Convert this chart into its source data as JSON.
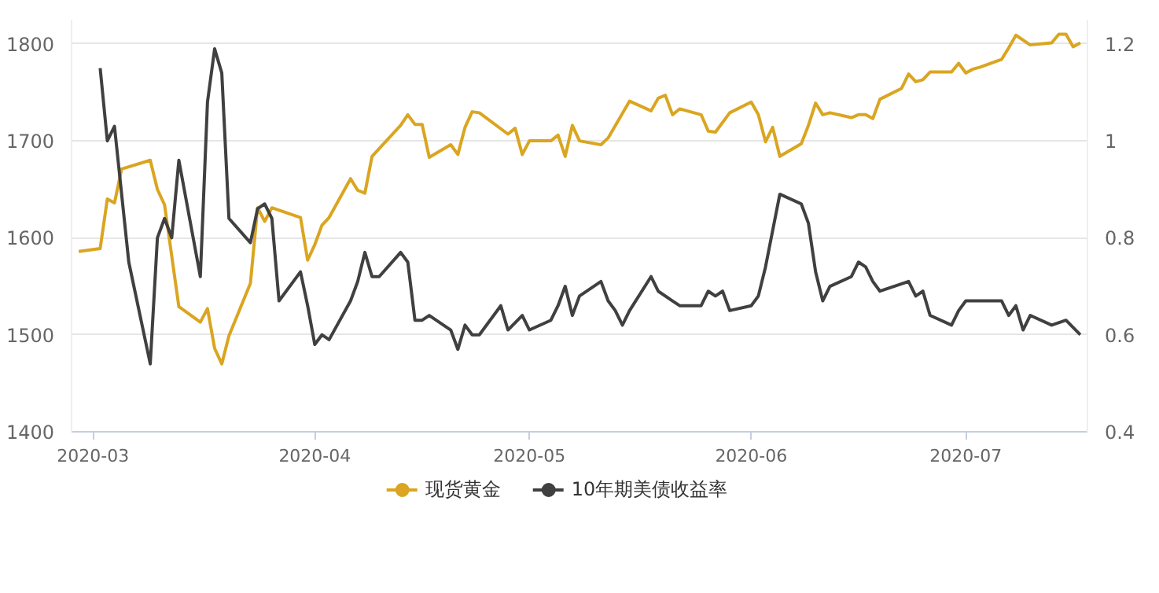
{
  "chart_data": {
    "type": "line",
    "xlim": [
      "2020-02-27",
      "2020-07-18"
    ],
    "xticks": [
      {
        "value": "2020-03-01",
        "label": "2020-03"
      },
      {
        "value": "2020-04-01",
        "label": "2020-04"
      },
      {
        "value": "2020-05-01",
        "label": "2020-05"
      },
      {
        "value": "2020-06-01",
        "label": "2020-06"
      },
      {
        "value": "2020-07-01",
        "label": "2020-07"
      }
    ],
    "ylim": [
      1400,
      1825
    ],
    "yticks": [
      1400,
      1500,
      1600,
      1700,
      1800
    ],
    "y2lim": [
      0.4,
      1.25
    ],
    "y2ticks": [
      0.4,
      0.6,
      0.8,
      1,
      1.2
    ],
    "grid": "y",
    "legend": "bottom",
    "line_style": "solid",
    "series": [
      {
        "name": "现货黄金",
        "color": "#daa520",
        "x": [
          "2020-02-28",
          "2020-03-02",
          "2020-03-03",
          "2020-03-04",
          "2020-03-05",
          "2020-03-09",
          "2020-03-10",
          "2020-03-11",
          "2020-03-13",
          "2020-03-16",
          "2020-03-17",
          "2020-03-18",
          "2020-03-19",
          "2020-03-20",
          "2020-03-23",
          "2020-03-24",
          "2020-03-25",
          "2020-03-26",
          "2020-03-30",
          "2020-03-31",
          "2020-04-01",
          "2020-04-02",
          "2020-04-03",
          "2020-04-06",
          "2020-04-07",
          "2020-04-08",
          "2020-04-09",
          "2020-04-13",
          "2020-04-14",
          "2020-04-15",
          "2020-04-16",
          "2020-04-17",
          "2020-04-20",
          "2020-04-21",
          "2020-04-22",
          "2020-04-23",
          "2020-04-24",
          "2020-04-28",
          "2020-04-29",
          "2020-04-30",
          "2020-05-01",
          "2020-05-04",
          "2020-05-05",
          "2020-05-06",
          "2020-05-07",
          "2020-05-08",
          "2020-05-11",
          "2020-05-12",
          "2020-05-15",
          "2020-05-18",
          "2020-05-19",
          "2020-05-20",
          "2020-05-21",
          "2020-05-22",
          "2020-05-25",
          "2020-05-26",
          "2020-05-27",
          "2020-05-29",
          "2020-06-01",
          "2020-06-02",
          "2020-06-03",
          "2020-06-04",
          "2020-06-05",
          "2020-06-08",
          "2020-06-09",
          "2020-06-10",
          "2020-06-11",
          "2020-06-12",
          "2020-06-15",
          "2020-06-16",
          "2020-06-17",
          "2020-06-18",
          "2020-06-19",
          "2020-06-22",
          "2020-06-23",
          "2020-06-24",
          "2020-06-25",
          "2020-06-26",
          "2020-06-29",
          "2020-06-30",
          "2020-07-01",
          "2020-07-02",
          "2020-07-03",
          "2020-07-06",
          "2020-07-07",
          "2020-07-08",
          "2020-07-10",
          "2020-07-13",
          "2020-07-14",
          "2020-07-15",
          "2020-07-16",
          "2020-07-17"
        ],
        "values": [
          1586,
          1589,
          1640,
          1636,
          1671,
          1680,
          1650,
          1634,
          1529,
          1513,
          1527,
          1486,
          1470,
          1499,
          1553,
          1631,
          1617,
          1631,
          1621,
          1577,
          1593,
          1613,
          1621,
          1661,
          1649,
          1646,
          1684,
          1716,
          1727,
          1717,
          1717,
          1683,
          1696,
          1686,
          1714,
          1730,
          1729,
          1707,
          1713,
          1686,
          1700,
          1700,
          1706,
          1684,
          1716,
          1700,
          1696,
          1703,
          1741,
          1731,
          1744,
          1747,
          1727,
          1733,
          1727,
          1710,
          1709,
          1729,
          1740,
          1727,
          1699,
          1714,
          1684,
          1697,
          1716,
          1739,
          1727,
          1729,
          1724,
          1727,
          1727,
          1723,
          1743,
          1754,
          1769,
          1761,
          1763,
          1771,
          1771,
          1780,
          1770,
          1774,
          1776,
          1784,
          1796,
          1809,
          1799,
          1801,
          1810,
          1810,
          1797,
          1801
        ]
      },
      {
        "name": "10年期美债收益率",
        "color": "#404040",
        "axis": "y2",
        "x": [
          "2020-03-02",
          "2020-03-03",
          "2020-03-04",
          "2020-03-06",
          "2020-03-09",
          "2020-03-10",
          "2020-03-11",
          "2020-03-12",
          "2020-03-13",
          "2020-03-16",
          "2020-03-17",
          "2020-03-18",
          "2020-03-19",
          "2020-03-20",
          "2020-03-23",
          "2020-03-24",
          "2020-03-25",
          "2020-03-26",
          "2020-03-27",
          "2020-03-30",
          "2020-03-31",
          "2020-04-01",
          "2020-04-02",
          "2020-04-03",
          "2020-04-06",
          "2020-04-07",
          "2020-04-08",
          "2020-04-09",
          "2020-04-10",
          "2020-04-13",
          "2020-04-14",
          "2020-04-15",
          "2020-04-16",
          "2020-04-17",
          "2020-04-20",
          "2020-04-21",
          "2020-04-22",
          "2020-04-23",
          "2020-04-24",
          "2020-04-27",
          "2020-04-28",
          "2020-04-30",
          "2020-05-01",
          "2020-05-04",
          "2020-05-05",
          "2020-05-06",
          "2020-05-07",
          "2020-05-08",
          "2020-05-11",
          "2020-05-12",
          "2020-05-13",
          "2020-05-14",
          "2020-05-15",
          "2020-05-18",
          "2020-05-19",
          "2020-05-21",
          "2020-05-22",
          "2020-05-25",
          "2020-05-26",
          "2020-05-27",
          "2020-05-28",
          "2020-05-29",
          "2020-06-01",
          "2020-06-02",
          "2020-06-03",
          "2020-06-05",
          "2020-06-08",
          "2020-06-09",
          "2020-06-10",
          "2020-06-11",
          "2020-06-12",
          "2020-06-15",
          "2020-06-16",
          "2020-06-17",
          "2020-06-18",
          "2020-06-19",
          "2020-06-23",
          "2020-06-24",
          "2020-06-25",
          "2020-06-26",
          "2020-06-29",
          "2020-06-30",
          "2020-07-01",
          "2020-07-02",
          "2020-07-06",
          "2020-07-07",
          "2020-07-08",
          "2020-07-09",
          "2020-07-10",
          "2020-07-13",
          "2020-07-15",
          "2020-07-17"
        ],
        "values": [
          1.15,
          1.0,
          1.03,
          0.75,
          0.54,
          0.8,
          0.84,
          0.8,
          0.96,
          0.72,
          1.08,
          1.19,
          1.14,
          0.84,
          0.79,
          0.86,
          0.87,
          0.84,
          0.67,
          0.73,
          0.66,
          0.58,
          0.6,
          0.59,
          0.67,
          0.71,
          0.77,
          0.72,
          0.72,
          0.77,
          0.75,
          0.63,
          0.63,
          0.64,
          0.61,
          0.57,
          0.62,
          0.6,
          0.6,
          0.66,
          0.61,
          0.64,
          0.61,
          0.63,
          0.66,
          0.7,
          0.64,
          0.68,
          0.71,
          0.67,
          0.65,
          0.62,
          0.65,
          0.72,
          0.69,
          0.67,
          0.66,
          0.66,
          0.69,
          0.68,
          0.69,
          0.65,
          0.66,
          0.68,
          0.74,
          0.89,
          0.87,
          0.83,
          0.73,
          0.67,
          0.7,
          0.72,
          0.75,
          0.74,
          0.71,
          0.69,
          0.71,
          0.68,
          0.69,
          0.64,
          0.62,
          0.65,
          0.67,
          0.67,
          0.67,
          0.64,
          0.66,
          0.61,
          0.64,
          0.62,
          0.63,
          0.6
        ]
      }
    ]
  }
}
